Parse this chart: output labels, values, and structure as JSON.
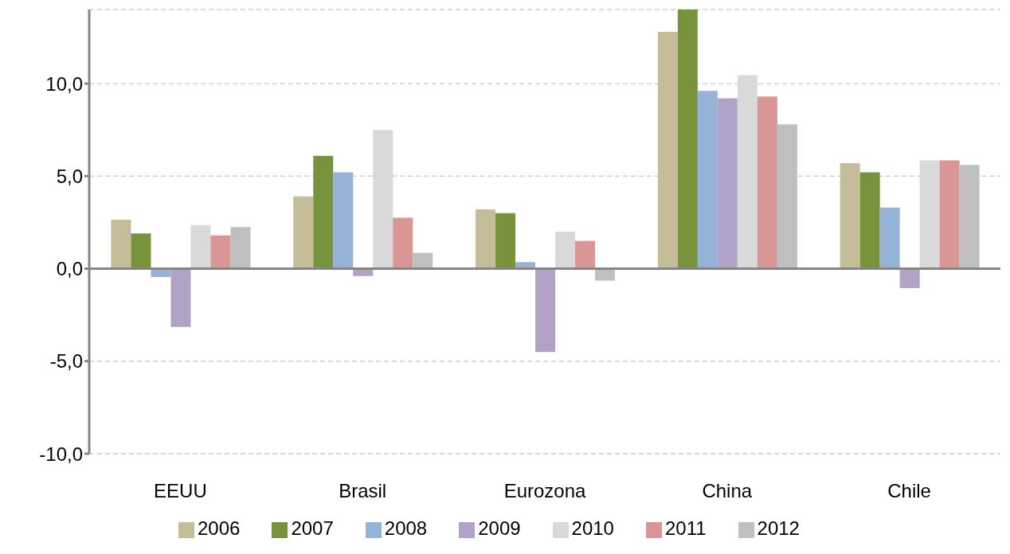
{
  "chart_data": {
    "type": "bar",
    "categories": [
      "EEUU",
      "Brasil",
      "Eurozona",
      "China",
      "Chile"
    ],
    "series": [
      {
        "name": "2006",
        "color": "#c4bd97",
        "values": [
          2.65,
          3.9,
          3.2,
          12.8,
          5.7
        ]
      },
      {
        "name": "2007",
        "color": "#77933c",
        "values": [
          1.9,
          6.1,
          3.0,
          14.0,
          5.2
        ]
      },
      {
        "name": "2008",
        "color": "#95b3d7",
        "values": [
          -0.45,
          5.2,
          0.35,
          9.6,
          3.3
        ]
      },
      {
        "name": "2009",
        "color": "#b3a2c7",
        "values": [
          -3.15,
          -0.4,
          -4.5,
          9.2,
          -1.05
        ]
      },
      {
        "name": "2010",
        "color": "#d9d9d9",
        "values": [
          2.35,
          7.5,
          2.0,
          10.45,
          5.85
        ]
      },
      {
        "name": "2011",
        "color": "#d99694",
        "values": [
          1.8,
          2.75,
          1.5,
          9.3,
          5.85
        ]
      },
      {
        "name": "2012",
        "color": "#bfbfbf",
        "values": [
          2.25,
          0.85,
          -0.65,
          7.8,
          5.6
        ]
      }
    ],
    "ylim": [
      -10,
      14
    ],
    "yticks": [
      {
        "value": -10,
        "label": "-10,0"
      },
      {
        "value": -5,
        "label": "-5,0"
      },
      {
        "value": 0,
        "label": "0,0"
      },
      {
        "value": 5,
        "label": "5,0"
      },
      {
        "value": 10,
        "label": "10,0"
      }
    ],
    "grid": "y",
    "legend": "bottom"
  }
}
